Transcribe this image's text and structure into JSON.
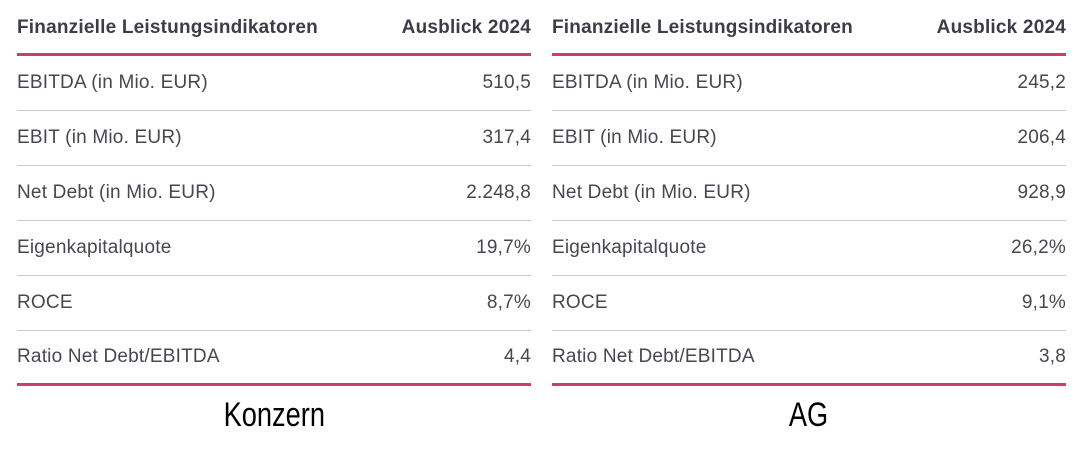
{
  "colors": {
    "accent_pink": "#cb3c71",
    "row_separator": "#c9c9c9",
    "header_text": "#3d3d46",
    "body_text": "#474750",
    "caption_text": "#000000",
    "background": "#ffffff"
  },
  "tables": [
    {
      "header": {
        "label": "Finanzielle Leistungsindikatoren",
        "value": "Ausblick 2024"
      },
      "rows": [
        {
          "label": "EBITDA (in Mio. EUR)",
          "value": "510,5"
        },
        {
          "label": "EBIT (in Mio. EUR)",
          "value": "317,4"
        },
        {
          "label": "Net Debt (in Mio. EUR)",
          "value": "2.248,8"
        },
        {
          "label": "Eigenkapitalquote",
          "value": "19,7%"
        },
        {
          "label": "ROCE",
          "value": "8,7%"
        },
        {
          "label": "Ratio Net Debt/EBITDA",
          "value": "4,4"
        }
      ],
      "caption": "Konzern"
    },
    {
      "header": {
        "label": "Finanzielle Leistungsindikatoren",
        "value": "Ausblick 2024"
      },
      "rows": [
        {
          "label": "EBITDA (in Mio. EUR)",
          "value": "245,2"
        },
        {
          "label": "EBIT (in Mio. EUR)",
          "value": "206,4"
        },
        {
          "label": "Net Debt (in Mio. EUR)",
          "value": "928,9"
        },
        {
          "label": "Eigenkapitalquote",
          "value": "26,2%"
        },
        {
          "label": "ROCE",
          "value": "9,1%"
        },
        {
          "label": "Ratio Net Debt/EBITDA",
          "value": "3,8"
        }
      ],
      "caption": "AG"
    }
  ],
  "chart_data": [
    {
      "type": "table",
      "title": "Konzern",
      "columns": [
        "Finanzielle Leistungsindikatoren",
        "Ausblick 2024"
      ],
      "rows": [
        [
          "EBITDA (in Mio. EUR)",
          "510,5"
        ],
        [
          "EBIT (in Mio. EUR)",
          "317,4"
        ],
        [
          "Net Debt (in Mio. EUR)",
          "2.248,8"
        ],
        [
          "Eigenkapitalquote",
          "19,7%"
        ],
        [
          "ROCE",
          "8,7%"
        ],
        [
          "Ratio Net Debt/EBITDA",
          "4,4"
        ]
      ]
    },
    {
      "type": "table",
      "title": "AG",
      "columns": [
        "Finanzielle Leistungsindikatoren",
        "Ausblick 2024"
      ],
      "rows": [
        [
          "EBITDA (in Mio. EUR)",
          "245,2"
        ],
        [
          "EBIT (in Mio. EUR)",
          "206,4"
        ],
        [
          "Net Debt (in Mio. EUR)",
          "928,9"
        ],
        [
          "Eigenkapitalquote",
          "26,2%"
        ],
        [
          "ROCE",
          "9,1%"
        ],
        [
          "Ratio Net Debt/EBITDA",
          "3,8"
        ]
      ]
    }
  ]
}
